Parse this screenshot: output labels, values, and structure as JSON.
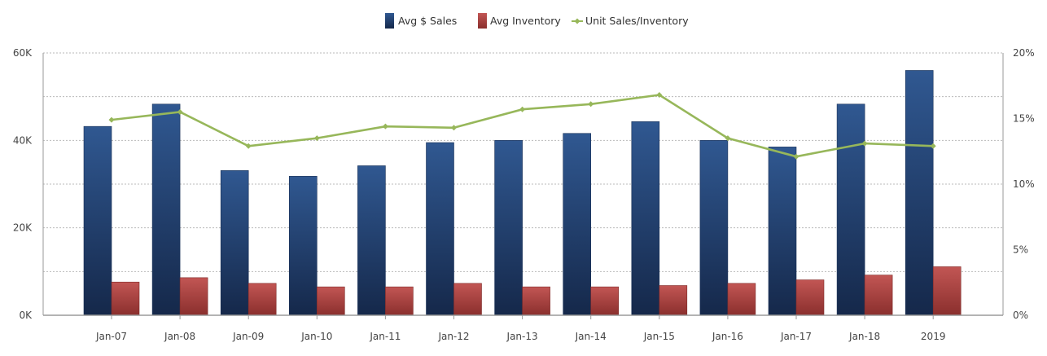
{
  "colors": {
    "sales": "#27487a",
    "inventory": "#b24a48",
    "ratio": "#97b75a",
    "grid": "#b9b9b9",
    "axis": "#9a9a9a"
  },
  "chart_data": {
    "type": "bar",
    "title": "",
    "xlabel": "",
    "ylabel": "",
    "categories": [
      "Jan-07",
      "Jan-08",
      "Jan-09",
      "Jan-10",
      "Jan-11",
      "Jan-12",
      "Jan-13",
      "Jan-14",
      "Jan-15",
      "Jan-16",
      "Jan-17",
      "Jan-18",
      "2019"
    ],
    "y_left": {
      "ticks": [
        0,
        20000,
        40000,
        60000
      ],
      "tick_labels": [
        "0K",
        "20K",
        "40K",
        "60K"
      ],
      "range": [
        0,
        60000
      ]
    },
    "y_right": {
      "ticks": [
        0,
        5,
        10,
        15,
        20
      ],
      "tick_labels": [
        "0%",
        "5%",
        "10%",
        "15%",
        "20%"
      ],
      "range": [
        0,
        20
      ]
    },
    "grid": true,
    "legend": {
      "position": "top-center"
    },
    "series": [
      {
        "name": "Avg $ Sales",
        "type": "bar",
        "axis": "left",
        "values": [
          43200,
          48300,
          33100,
          31800,
          34200,
          39500,
          40000,
          41600,
          44300,
          40000,
          38500,
          48300,
          56000
        ]
      },
      {
        "name": "Avg Inventory",
        "type": "bar",
        "axis": "left",
        "values": [
          7600,
          8600,
          7300,
          6500,
          6500,
          7300,
          6500,
          6500,
          6800,
          7300,
          8100,
          9200,
          11100
        ]
      },
      {
        "name": "Unit Sales/Inventory",
        "type": "line",
        "axis": "right",
        "values": [
          14.9,
          15.5,
          12.9,
          13.5,
          14.4,
          14.3,
          15.7,
          16.1,
          16.8,
          13.5,
          12.1,
          13.1,
          12.9
        ]
      }
    ]
  }
}
